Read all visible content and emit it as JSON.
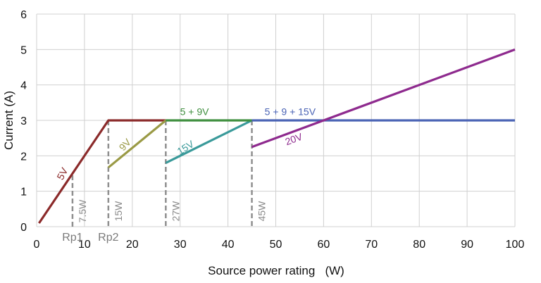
{
  "chart_data": {
    "type": "line",
    "title": "",
    "xlabel": "Source power rating   (W)",
    "ylabel": "Current (A)",
    "xlim": [
      0,
      100
    ],
    "ylim": [
      0,
      6
    ],
    "x_ticks": [
      0,
      10,
      20,
      30,
      40,
      50,
      60,
      70,
      80,
      90,
      100
    ],
    "y_ticks": [
      0,
      1,
      2,
      3,
      4,
      5,
      6
    ],
    "grid": true,
    "series": [
      {
        "name": "5V",
        "color": "#8b2a2a",
        "x": [
          0.5,
          15,
          27
        ],
        "y": [
          0.1,
          3,
          3
        ]
      },
      {
        "name": "9V",
        "color": "#9a9a45",
        "x": [
          15,
          27
        ],
        "y": [
          1.67,
          3
        ]
      },
      {
        "name": "15V",
        "color": "#3a9a9a",
        "x": [
          27,
          45
        ],
        "y": [
          1.8,
          3
        ]
      },
      {
        "name": "5 + 9V",
        "color": "#3f8f3f",
        "x": [
          27,
          45
        ],
        "y": [
          3,
          3
        ]
      },
      {
        "name": "5 + 9 + 15V",
        "color": "#4a63b5",
        "x": [
          45,
          100
        ],
        "y": [
          3,
          3
        ]
      },
      {
        "name": "20V",
        "color": "#8e2a8e",
        "x": [
          45,
          100
        ],
        "y": [
          2.25,
          5
        ]
      }
    ],
    "reference_lines": [
      {
        "x": 7.5,
        "label": "7.5W",
        "bottom_label": "Rp1"
      },
      {
        "x": 15,
        "label": "15W",
        "bottom_label": "Rp2"
      },
      {
        "x": 27,
        "label": "27W",
        "bottom_label": ""
      },
      {
        "x": 45,
        "label": "45W",
        "bottom_label": ""
      }
    ]
  }
}
